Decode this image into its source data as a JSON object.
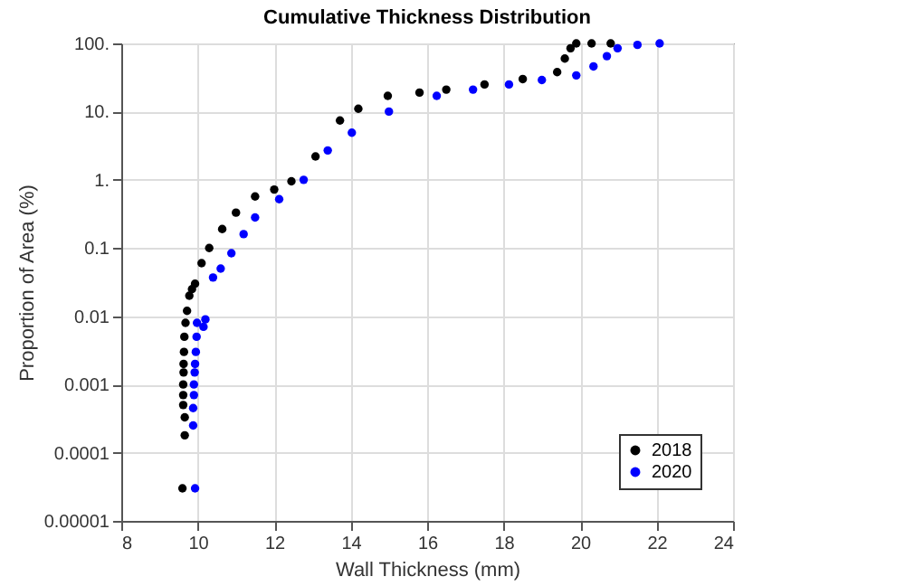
{
  "chart_data": {
    "type": "scatter",
    "title": "Cumulative Thickness Distribution",
    "xlabel": "Wall Thickness (mm)",
    "ylabel": "Proportion of Area (%)",
    "log": "y",
    "grid": true,
    "legend": "bottom right",
    "marker": "circle",
    "xlim": [
      8,
      24
    ],
    "xticks": [
      8,
      10,
      12,
      14,
      16,
      18,
      20,
      22,
      24
    ],
    "ylim": [
      1e-05,
      100
    ],
    "yticks": [
      {
        "value": 1e-05,
        "label": "0.00001"
      },
      {
        "value": 0.0001,
        "label": "0.0001"
      },
      {
        "value": 0.001,
        "label": "0.001"
      },
      {
        "value": 0.01,
        "label": "0.01"
      },
      {
        "value": 0.1,
        "label": "0.1"
      },
      {
        "value": 1,
        "label": "1."
      },
      {
        "value": 10,
        "label": "10."
      },
      {
        "value": 100,
        "label": "100."
      }
    ],
    "series": [
      {
        "name": "2018",
        "color": "#000000",
        "x": [
          9.6,
          9.66,
          9.66,
          9.62,
          9.62,
          9.62,
          9.63,
          9.63,
          9.64,
          9.65,
          9.68,
          9.72,
          9.78,
          9.85,
          9.93,
          10.1,
          10.3,
          10.64,
          11.0,
          11.5,
          12.0,
          12.45,
          13.08,
          13.72,
          14.2,
          14.97,
          15.8,
          16.5,
          17.5,
          18.5,
          19.4,
          19.6,
          19.75,
          19.9,
          20.3,
          20.8
        ],
        "values": [
          3e-05,
          0.00018,
          0.00033,
          0.0005,
          0.0007,
          0.001,
          0.0015,
          0.002,
          0.003,
          0.005,
          0.008,
          0.012,
          0.02,
          0.025,
          0.03,
          0.06,
          0.1,
          0.19,
          0.33,
          0.57,
          0.72,
          0.95,
          2.2,
          7.4,
          11,
          17,
          19,
          21,
          25,
          30,
          38,
          60,
          85,
          100,
          100,
          100
        ]
      },
      {
        "name": "2020",
        "color": "#0000ff",
        "x": [
          9.93,
          9.88,
          9.88,
          9.9,
          9.9,
          9.92,
          9.93,
          9.95,
          9.97,
          9.98,
          10.15,
          10.2,
          10.4,
          10.6,
          10.88,
          11.2,
          11.5,
          12.13,
          12.77,
          13.4,
          14.03,
          15.0,
          16.25,
          17.2,
          18.14,
          19.0,
          19.9,
          20.35,
          20.7,
          20.98,
          21.5,
          22.08
        ],
        "values": [
          3e-05,
          0.00025,
          0.00045,
          0.0007,
          0.001,
          0.0015,
          0.002,
          0.003,
          0.005,
          0.008,
          0.007,
          0.009,
          0.037,
          0.05,
          0.084,
          0.16,
          0.28,
          0.52,
          1,
          2.7,
          4.9,
          10,
          17,
          21,
          25,
          29,
          34,
          46,
          65,
          85,
          95,
          100
        ]
      }
    ]
  }
}
